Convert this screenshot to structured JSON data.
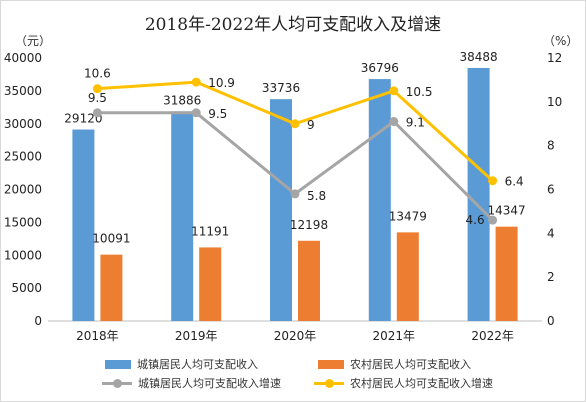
{
  "chart_data": {
    "type": "bar",
    "title": "2018年-2022年人均可支配收入及增速",
    "left_unit": "（元）",
    "right_unit": "（%）",
    "categories": [
      "2018年",
      "2019年",
      "2020年",
      "2021年",
      "2022年"
    ],
    "y_left": {
      "min": 0,
      "max": 40000,
      "ticks": [
        "0",
        "5000",
        "10000",
        "15000",
        "20000",
        "25000",
        "30000",
        "35000",
        "40000"
      ]
    },
    "y_right": {
      "min": 0,
      "max": 12,
      "ticks": [
        "0",
        "2",
        "4",
        "6",
        "8",
        "10",
        "12"
      ]
    },
    "series": [
      {
        "name": "城镇居民人均可支配收入",
        "kind": "bar",
        "axis": "left",
        "color": "#5b9bd5",
        "values": [
          29120,
          31886,
          33736,
          36796,
          38488
        ],
        "labels": [
          "29120",
          "31886",
          "33736",
          "36796",
          "38488"
        ]
      },
      {
        "name": "农村居民人均可支配收入",
        "kind": "bar",
        "axis": "left",
        "color": "#ed7d31",
        "values": [
          10091,
          11191,
          12198,
          13479,
          14347
        ],
        "labels": [
          "10091",
          "11191",
          "12198",
          "13479",
          "14347"
        ]
      },
      {
        "name": "城镇居民人均可支配收入增速",
        "kind": "line",
        "axis": "right",
        "color": "#a5a5a5",
        "values": [
          9.5,
          9.5,
          5.8,
          9.1,
          4.6
        ],
        "labels": [
          "9.5",
          "9.5",
          "5.8",
          "9.1",
          "4.6"
        ]
      },
      {
        "name": "农村居民人均可支配收入增速",
        "kind": "line",
        "axis": "right",
        "color": "#ffc000",
        "values": [
          10.6,
          10.9,
          9,
          10.5,
          6.4
        ],
        "labels": [
          "10.6",
          "10.9",
          "9",
          "10.5",
          "6.4"
        ]
      }
    ],
    "grid": false,
    "legend_position": "bottom"
  }
}
